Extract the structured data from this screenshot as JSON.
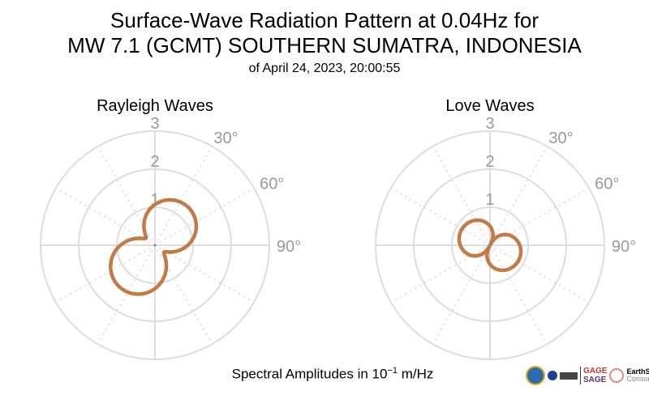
{
  "title_line1": "Surface-Wave Radiation Pattern at 0.04Hz for",
  "title_line2": "MW 7.1 (GCMT) SOUTHERN SUMATRA, INDONESIA",
  "title_line3": "of April 24, 2023, 20:00:55",
  "xlabel_prefix": "Spectral Amplitudes in 10",
  "xlabel_exp": "−1",
  "xlabel_suffix": " m/Hz",
  "logos": {
    "gage": "GAGE",
    "sage": "SAGE",
    "earthscope": "EarthScope",
    "consortium": "Consortium",
    "nsf": "NSF"
  },
  "colors": {
    "pattern": "#c27a47",
    "grid": "#dddddd",
    "label": "#999999"
  },
  "chart_data": [
    {
      "type": "polar-line",
      "title": "Rayleigh Waves",
      "r_ticks": [
        1,
        2,
        3
      ],
      "rlim": [
        0,
        3
      ],
      "angle_labels": [
        "30°",
        "60°",
        "90°"
      ],
      "azimuth_deg": [
        0,
        30,
        38,
        60,
        90,
        120,
        128,
        150,
        180,
        210,
        218,
        240,
        270,
        300,
        308,
        330
      ],
      "amplitude": [
        1.1,
        1.35,
        1.38,
        1.2,
        0.75,
        0.32,
        0.3,
        0.6,
        1.1,
        1.42,
        1.45,
        1.28,
        0.8,
        0.34,
        0.3,
        0.65
      ]
    },
    {
      "type": "polar-line",
      "title": "Love Waves",
      "r_ticks": [
        1,
        2,
        3
      ],
      "rlim": [
        0,
        3
      ],
      "angle_labels": [
        "30°",
        "60°",
        "90°"
      ],
      "azimuth_deg": [
        0,
        28,
        60,
        90,
        118,
        150,
        180,
        208,
        240,
        270,
        298,
        330
      ],
      "amplitude": [
        0.5,
        0.0,
        0.5,
        0.75,
        0.85,
        0.75,
        0.5,
        0.0,
        0.5,
        0.75,
        0.85,
        0.75
      ]
    }
  ]
}
